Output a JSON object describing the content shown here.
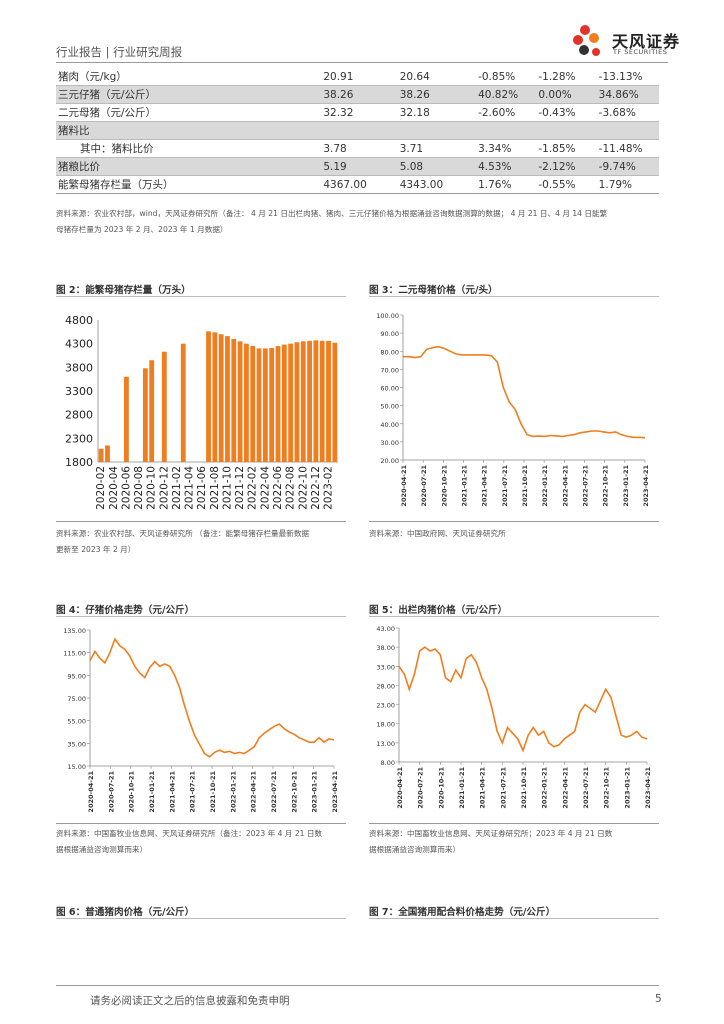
{
  "header": {
    "left": "行业报告 | 行业研究周报",
    "logo_cn": "天风证券",
    "logo_en": "TF SECURITIES"
  },
  "table": {
    "rows": [
      {
        "name": "猪肉（元/kg）",
        "c1": "20.91",
        "c2": "20.64",
        "c3": "-0.85%",
        "c4": "-1.28%",
        "c5": "-13.13%",
        "shade": false
      },
      {
        "name": "三元仔猪（元/公斤）",
        "c1": "38.26",
        "c2": "38.26",
        "c3": "40.82%",
        "c4": "0.00%",
        "c5": "34.86%",
        "shade": true
      },
      {
        "name": "二元母猪（元/公斤）",
        "c1": "32.32",
        "c2": "32.18",
        "c3": "-2.60%",
        "c4": "-0.43%",
        "c5": "-3.68%",
        "shade": false
      },
      {
        "name": "猪料比",
        "c1": "",
        "c2": "",
        "c3": "",
        "c4": "",
        "c5": "",
        "shade": true
      },
      {
        "name": "其中：猪料比价",
        "c1": "3.78",
        "c2": "3.71",
        "c3": "3.34%",
        "c4": "-1.85%",
        "c5": "-11.48%",
        "shade": false,
        "indent": true
      },
      {
        "name": "猪粮比价",
        "c1": "5.19",
        "c2": "5.08",
        "c3": "4.53%",
        "c4": "-2.12%",
        "c5": "-9.74%",
        "shade": true
      },
      {
        "name": "能繁母猪存栏量（万头）",
        "c1": "4367.00",
        "c2": "4343.00",
        "c3": "1.76%",
        "c4": "-0.55%",
        "c5": "1.79%",
        "shade": false
      }
    ]
  },
  "table_note_line1": "资料来源：农业农村部，wind，天风证券研究所（备注： 4 月 21 日出栏肉猪、猪肉、三元仔猪价格为根据涌益咨询数据测算的数据； 4 月 21 日、4 月 14 日能繁",
  "table_note_line2": "母猪存栏量为 2023 年 2 月、2023 年 1 月数据）",
  "fig2": {
    "title": "图 2：能繁母猪存栏量（万头）",
    "source1": "资料来源：农业农村部、天风证券研究所 （备注：能繁母猪存栏量最新数据",
    "source2": "更新至 2023 年 2 月）"
  },
  "fig3": {
    "title": "图 3：二元母猪价格（元/头）",
    "source": "资料来源：中国政府网、天风证券研究所"
  },
  "fig4": {
    "title": "图 4：仔猪价格走势（元/公斤）",
    "source1": "资料来源：中国畜牧业信息网、天风证券研究所（备注：2023 年 4 月 21 日数",
    "source2": "据根据涌益咨询测算而来）"
  },
  "fig5": {
    "title": "图 5：出栏肉猪价格（元/公斤）",
    "source1": "资料来源：中国畜牧业信息网、天风证券研究所；2023 年 4 月 21 日数",
    "source2": "据根据涌益咨询测算而来）"
  },
  "fig6": {
    "title": "图 6：普通猪肉价格（元/公斤）"
  },
  "fig7": {
    "title": "图 7：全国猪用配合料价格走势（元/公斤）"
  },
  "footer": {
    "text": "请务必阅读正文之后的信息披露和免责申明",
    "page": "5"
  },
  "colors": {
    "accent": "#f07d1e",
    "logo_red": "#e0332a"
  },
  "chart_data": [
    {
      "id": "fig2",
      "type": "bar",
      "title": "能繁母猪存栏量（万头）",
      "ylim": [
        1800,
        4800
      ],
      "yticks": [
        1800,
        2300,
        2800,
        3300,
        3800,
        4300,
        4800
      ],
      "xticks": [
        "2020-02",
        "2020-04",
        "2020-06",
        "2020-08",
        "2020-10",
        "2020-12",
        "2021-02",
        "2021-04",
        "2021-06",
        "2021-08",
        "2021-10",
        "2021-12",
        "2022-02",
        "2022-04",
        "2022-06",
        "2022-08",
        "2022-10",
        "2022-12",
        "2023-02"
      ],
      "values": [
        2080,
        2150,
        null,
        null,
        3600,
        null,
        null,
        3780,
        3950,
        null,
        4130,
        null,
        null,
        4300,
        null,
        null,
        null,
        4560,
        4540,
        4500,
        4460,
        4400,
        4350,
        4300,
        4250,
        4200,
        4200,
        4210,
        4250,
        4280,
        4300,
        4330,
        4350,
        4360,
        4370,
        4360,
        4360,
        4320
      ]
    },
    {
      "id": "fig3",
      "type": "line",
      "title": "二元母猪价格（元/头）",
      "ylim": [
        20,
        100
      ],
      "yticks": [
        "20.00",
        "30.00",
        "40.00",
        "50.00",
        "60.00",
        "70.00",
        "80.00",
        "90.00",
        "100.00"
      ],
      "xticks": [
        "2020-04-21",
        "2020-07-21",
        "2020-10-21",
        "2021-01-21",
        "2021-04-21",
        "2021-07-21",
        "2021-10-21",
        "2022-01-21",
        "2022-04-21",
        "2022-07-21",
        "2022-10-21",
        "2023-01-21",
        "2023-04-21"
      ],
      "values": [
        77,
        77,
        76.5,
        77,
        81,
        82,
        82.5,
        81.5,
        80,
        78.5,
        78,
        78,
        78,
        78,
        78,
        77.5,
        74,
        60,
        52,
        48,
        40,
        34,
        33,
        33.2,
        33,
        33.5,
        33.3,
        33,
        33.5,
        34,
        35,
        35.5,
        36,
        36,
        35.5,
        35,
        35.5,
        34,
        33,
        32.5,
        32.5,
        32.3
      ]
    },
    {
      "id": "fig4",
      "type": "line",
      "title": "仔猪价格走势（元/公斤）",
      "ylim": [
        15,
        135
      ],
      "yticks": [
        "15.00",
        "35.00",
        "55.00",
        "75.00",
        "95.00",
        "115.00",
        "135.00"
      ],
      "xticks": [
        "2020-04-21",
        "2020-07-21",
        "2020-10-21",
        "2021-01-21",
        "2021-04-21",
        "2021-07-21",
        "2021-10-21",
        "2022-01-21",
        "2022-04-21",
        "2022-07-21",
        "2022-10-21",
        "2023-01-21",
        "2023-04-21"
      ],
      "values": [
        108,
        116,
        110,
        106,
        115,
        127,
        121,
        118,
        112,
        103,
        97,
        93,
        102,
        107,
        103,
        105,
        103,
        95,
        84,
        68,
        54,
        42,
        34,
        26,
        23,
        27,
        29,
        27,
        28,
        26,
        27,
        26,
        29,
        32,
        40,
        44,
        47,
        50,
        52,
        48,
        45,
        43,
        40,
        38,
        36,
        36,
        40,
        36,
        39,
        38
      ]
    },
    {
      "id": "fig5",
      "type": "line",
      "title": "出栏肉猪价格（元/公斤）",
      "ylim": [
        8,
        43
      ],
      "yticks": [
        "8.00",
        "13.00",
        "18.00",
        "23.00",
        "28.00",
        "33.00",
        "38.00",
        "43.00"
      ],
      "xticks": [
        "2020-04-21",
        "2020-07-21",
        "2020-10-21",
        "2021-01-21",
        "2021-04-21",
        "2021-07-21",
        "2021-10-21",
        "2022-01-21",
        "2022-04-21",
        "2022-07-21",
        "2022-10-21",
        "2023-01-21",
        "2023-04-21"
      ],
      "values": [
        33,
        31,
        27,
        31,
        37,
        38,
        37,
        37.5,
        36,
        30,
        29,
        32,
        30,
        35,
        36,
        34,
        30,
        27,
        22,
        16,
        13,
        17,
        15.5,
        14,
        11,
        15,
        17,
        15,
        16,
        13,
        12,
        12.5,
        14,
        15,
        16,
        21,
        23,
        22,
        21,
        24,
        27,
        25,
        20,
        15,
        14.5,
        15,
        16,
        14.5,
        14
      ]
    }
  ]
}
